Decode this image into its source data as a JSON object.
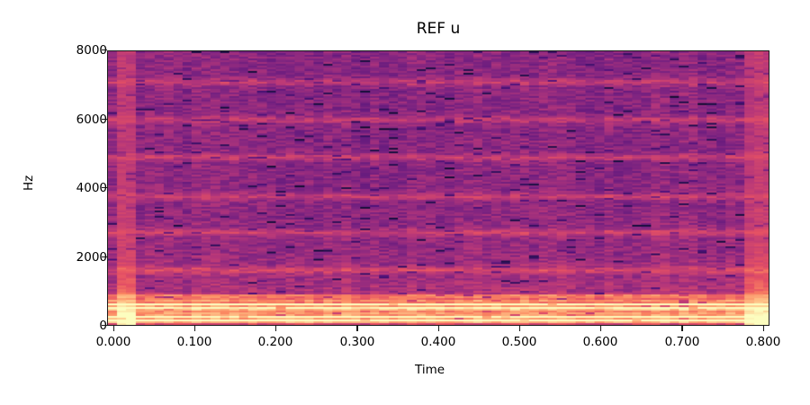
{
  "chart_data": {
    "type": "heatmap",
    "title": "REF u",
    "xlabel": "Time",
    "ylabel": "Hz",
    "xlim": [
      -0.008,
      0.81
    ],
    "ylim": [
      0,
      8000
    ],
    "x_ticks": [
      "0.000",
      "0.100",
      "0.200",
      "0.300",
      "0.400",
      "0.500",
      "0.600",
      "0.700",
      "0.800"
    ],
    "x_tick_values": [
      0.0,
      0.1,
      0.2,
      0.3,
      0.4,
      0.5,
      0.6,
      0.7,
      0.8
    ],
    "y_ticks": [
      "0",
      "2000",
      "4000",
      "6000",
      "8000"
    ],
    "y_tick_values": [
      0,
      2000,
      4000,
      6000,
      8000
    ],
    "colormap": "magma",
    "grid": false,
    "description": "Spectrogram of a sustained vowel 'u'; strong low-frequency harmonics below ~900 Hz, weaker harmonic bands near 1600, 2700, 3750, 4900, 6000 and 7100 Hz; brighter broadband columns at start (<0.03 s) and end (>0.775 s).",
    "harmonic_bands_hz": [
      120,
      240,
      360,
      480,
      600,
      720,
      840,
      1600,
      2700,
      3750,
      4900,
      6000,
      7100
    ],
    "strong_bands_hz": [
      120,
      240,
      480,
      600
    ],
    "bright_time_ranges": [
      [
        0.0,
        0.025
      ],
      [
        0.775,
        0.81
      ]
    ]
  }
}
